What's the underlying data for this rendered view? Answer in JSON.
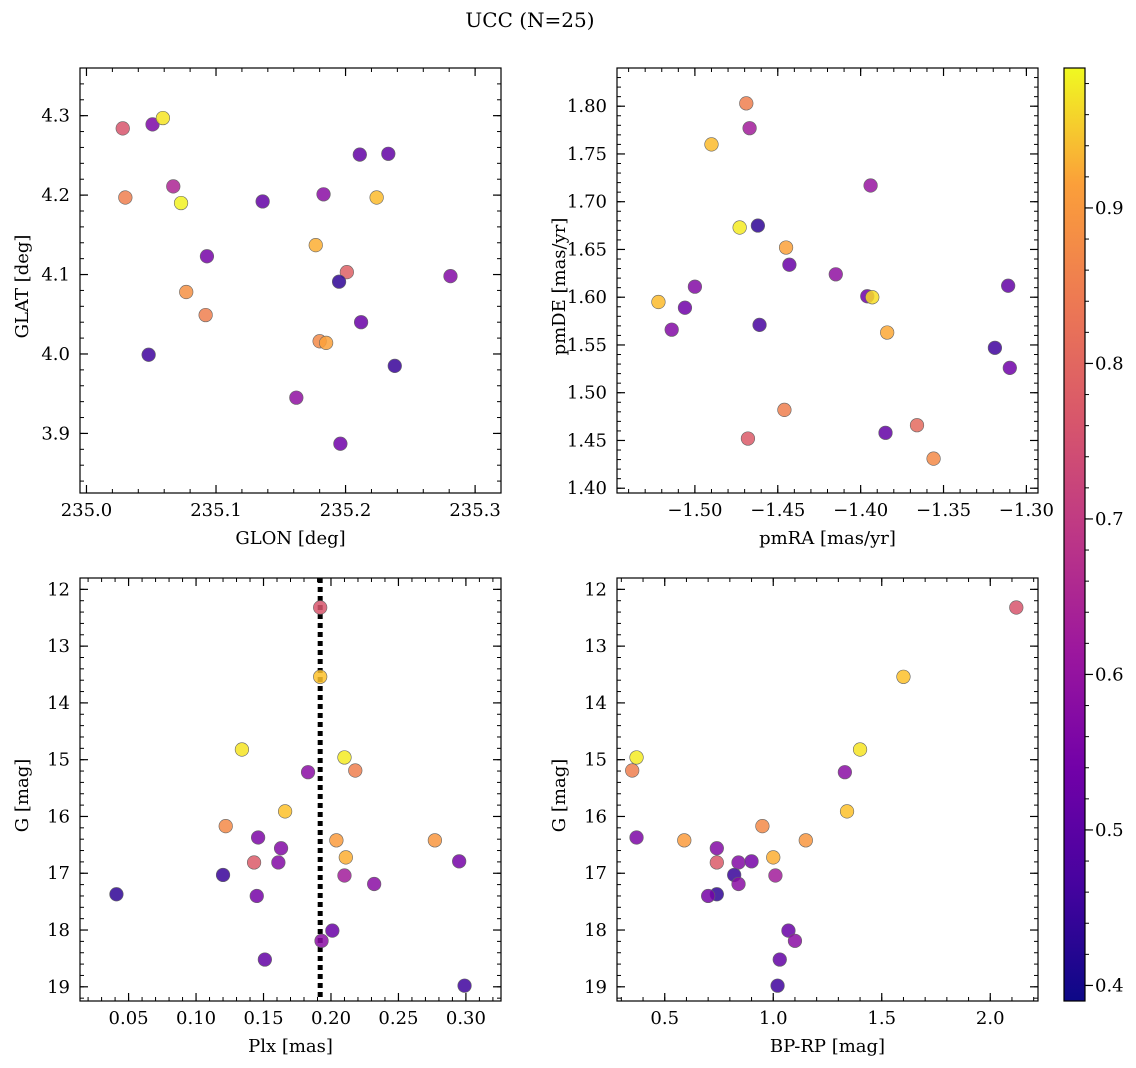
{
  "figure": {
    "title": "UCC (N=25)"
  },
  "colorbar": {
    "colormap": "plasma",
    "vmin": 0.39,
    "vmax": 0.99,
    "ticks": [
      0.4,
      0.5,
      0.6,
      0.7,
      0.8,
      0.9
    ],
    "tick_labels": [
      "0.4",
      "0.5",
      "0.6",
      "0.7",
      "0.8",
      "0.9"
    ]
  },
  "chart_data": [
    {
      "type": "scatter",
      "xlabel": "GLON [deg]",
      "ylabel": "GLAT [deg]",
      "xlim": [
        234.995,
        235.32
      ],
      "ylim": [
        3.825,
        4.36
      ],
      "xticks": [
        235.0,
        235.1,
        235.2,
        235.3
      ],
      "xtick_labels": [
        "235.0",
        "235.1",
        "235.2",
        "235.3"
      ],
      "yticks": [
        3.9,
        4.0,
        4.1,
        4.2,
        4.3
      ],
      "ytick_labels": [
        "3.9",
        "4.0",
        "4.1",
        "4.2",
        "4.3"
      ],
      "inverted_y": false,
      "vline": null,
      "points": [
        {
          "x": 235.028,
          "y": 4.284,
          "c": 0.72
        },
        {
          "x": 235.051,
          "y": 4.289,
          "c": 0.54
        },
        {
          "x": 235.059,
          "y": 4.297,
          "c": 0.96
        },
        {
          "x": 235.03,
          "y": 4.197,
          "c": 0.8
        },
        {
          "x": 235.067,
          "y": 4.211,
          "c": 0.62
        },
        {
          "x": 235.073,
          "y": 4.19,
          "c": 0.98
        },
        {
          "x": 235.136,
          "y": 4.192,
          "c": 0.5
        },
        {
          "x": 235.093,
          "y": 4.123,
          "c": 0.53
        },
        {
          "x": 235.077,
          "y": 4.078,
          "c": 0.83
        },
        {
          "x": 235.092,
          "y": 4.049,
          "c": 0.8
        },
        {
          "x": 235.048,
          "y": 3.999,
          "c": 0.45
        },
        {
          "x": 235.183,
          "y": 4.201,
          "c": 0.56
        },
        {
          "x": 235.211,
          "y": 4.251,
          "c": 0.5
        },
        {
          "x": 235.233,
          "y": 4.252,
          "c": 0.5
        },
        {
          "x": 235.224,
          "y": 4.197,
          "c": 0.9
        },
        {
          "x": 235.177,
          "y": 4.137,
          "c": 0.88
        },
        {
          "x": 235.201,
          "y": 4.103,
          "c": 0.74
        },
        {
          "x": 235.195,
          "y": 4.091,
          "c": 0.43
        },
        {
          "x": 235.281,
          "y": 4.098,
          "c": 0.55
        },
        {
          "x": 235.212,
          "y": 4.04,
          "c": 0.51
        },
        {
          "x": 235.18,
          "y": 4.016,
          "c": 0.82
        },
        {
          "x": 235.185,
          "y": 4.014,
          "c": 0.86
        },
        {
          "x": 235.238,
          "y": 3.985,
          "c": 0.44
        },
        {
          "x": 235.162,
          "y": 3.945,
          "c": 0.57
        },
        {
          "x": 235.196,
          "y": 3.887,
          "c": 0.52
        }
      ]
    },
    {
      "type": "scatter",
      "xlabel": "pmRA [mas/yr]",
      "ylabel": "pmDE [mas/yr]",
      "xlim": [
        -1.547,
        -1.293
      ],
      "ylim": [
        1.395,
        1.84
      ],
      "xticks": [
        -1.5,
        -1.45,
        -1.4,
        -1.35,
        -1.3
      ],
      "xtick_labels": [
        "−1.50",
        "−1.45",
        "−1.40",
        "−1.35",
        "−1.30"
      ],
      "yticks": [
        1.4,
        1.45,
        1.5,
        1.55,
        1.6,
        1.65,
        1.7,
        1.75,
        1.8
      ],
      "ytick_labels": [
        "1.40",
        "1.45",
        "1.50",
        "1.55",
        "1.60",
        "1.65",
        "1.70",
        "1.75",
        "1.80"
      ],
      "inverted_y": false,
      "vline": null,
      "points": [
        {
          "x": -1.469,
          "y": 1.803,
          "c": 0.8
        },
        {
          "x": -1.467,
          "y": 1.777,
          "c": 0.6
        },
        {
          "x": -1.49,
          "y": 1.76,
          "c": 0.9
        },
        {
          "x": -1.394,
          "y": 1.717,
          "c": 0.58
        },
        {
          "x": -1.473,
          "y": 1.673,
          "c": 0.97
        },
        {
          "x": -1.462,
          "y": 1.675,
          "c": 0.43
        },
        {
          "x": -1.445,
          "y": 1.652,
          "c": 0.86
        },
        {
          "x": -1.443,
          "y": 1.634,
          "c": 0.51
        },
        {
          "x": -1.415,
          "y": 1.624,
          "c": 0.57
        },
        {
          "x": -1.5,
          "y": 1.611,
          "c": 0.55
        },
        {
          "x": -1.506,
          "y": 1.589,
          "c": 0.52
        },
        {
          "x": -1.522,
          "y": 1.595,
          "c": 0.9
        },
        {
          "x": -1.514,
          "y": 1.566,
          "c": 0.55
        },
        {
          "x": -1.461,
          "y": 1.571,
          "c": 0.46
        },
        {
          "x": -1.396,
          "y": 1.601,
          "c": 0.52
        },
        {
          "x": -1.393,
          "y": 1.6,
          "c": 0.95
        },
        {
          "x": -1.384,
          "y": 1.563,
          "c": 0.87
        },
        {
          "x": -1.311,
          "y": 1.612,
          "c": 0.5
        },
        {
          "x": -1.319,
          "y": 1.547,
          "c": 0.45
        },
        {
          "x": -1.31,
          "y": 1.526,
          "c": 0.52
        },
        {
          "x": -1.446,
          "y": 1.482,
          "c": 0.8
        },
        {
          "x": -1.468,
          "y": 1.452,
          "c": 0.73
        },
        {
          "x": -1.385,
          "y": 1.458,
          "c": 0.5
        },
        {
          "x": -1.366,
          "y": 1.466,
          "c": 0.76
        },
        {
          "x": -1.356,
          "y": 1.431,
          "c": 0.82
        }
      ]
    },
    {
      "type": "scatter",
      "xlabel": "Plx [mas]",
      "ylabel": "G [mag]",
      "xlim": [
        0.014,
        0.326
      ],
      "ylim": [
        19.25,
        11.8
      ],
      "xticks": [
        0.05,
        0.1,
        0.15,
        0.2,
        0.25,
        0.3
      ],
      "xtick_labels": [
        "0.05",
        "0.10",
        "0.15",
        "0.20",
        "0.25",
        "0.30"
      ],
      "yticks": [
        12,
        13,
        14,
        15,
        16,
        17,
        18,
        19
      ],
      "ytick_labels": [
        "12",
        "13",
        "14",
        "15",
        "16",
        "17",
        "18",
        "19"
      ],
      "inverted_y": true,
      "vline": 0.192,
      "points": [
        {
          "x": 0.192,
          "y": 12.32,
          "c": 0.72
        },
        {
          "x": 0.192,
          "y": 13.54,
          "c": 0.91
        },
        {
          "x": 0.134,
          "y": 14.82,
          "c": 0.96
        },
        {
          "x": 0.21,
          "y": 14.96,
          "c": 0.97
        },
        {
          "x": 0.218,
          "y": 15.19,
          "c": 0.8
        },
        {
          "x": 0.183,
          "y": 15.22,
          "c": 0.56
        },
        {
          "x": 0.166,
          "y": 15.91,
          "c": 0.91
        },
        {
          "x": 0.122,
          "y": 16.17,
          "c": 0.82
        },
        {
          "x": 0.146,
          "y": 16.37,
          "c": 0.54
        },
        {
          "x": 0.204,
          "y": 16.42,
          "c": 0.85
        },
        {
          "x": 0.277,
          "y": 16.42,
          "c": 0.84
        },
        {
          "x": 0.163,
          "y": 16.56,
          "c": 0.55
        },
        {
          "x": 0.211,
          "y": 16.72,
          "c": 0.88
        },
        {
          "x": 0.143,
          "y": 16.81,
          "c": 0.73
        },
        {
          "x": 0.161,
          "y": 16.81,
          "c": 0.55
        },
        {
          "x": 0.295,
          "y": 16.79,
          "c": 0.53
        },
        {
          "x": 0.12,
          "y": 17.03,
          "c": 0.44
        },
        {
          "x": 0.21,
          "y": 17.04,
          "c": 0.6
        },
        {
          "x": 0.232,
          "y": 17.19,
          "c": 0.56
        },
        {
          "x": 0.041,
          "y": 17.37,
          "c": 0.43
        },
        {
          "x": 0.145,
          "y": 17.4,
          "c": 0.53
        },
        {
          "x": 0.201,
          "y": 18.01,
          "c": 0.51
        },
        {
          "x": 0.193,
          "y": 18.19,
          "c": 0.56
        },
        {
          "x": 0.151,
          "y": 18.52,
          "c": 0.5
        },
        {
          "x": 0.299,
          "y": 18.98,
          "c": 0.45
        }
      ]
    },
    {
      "type": "scatter",
      "xlabel": "BP-RP [mag]",
      "ylabel": "G [mag]",
      "xlim": [
        0.28,
        2.22
      ],
      "ylim": [
        19.25,
        11.8
      ],
      "xticks": [
        0.5,
        1.0,
        1.5,
        2.0
      ],
      "xtick_labels": [
        "0.5",
        "1.0",
        "1.5",
        "2.0"
      ],
      "yticks": [
        12,
        13,
        14,
        15,
        16,
        17,
        18,
        19
      ],
      "ytick_labels": [
        "12",
        "13",
        "14",
        "15",
        "16",
        "17",
        "18",
        "19"
      ],
      "inverted_y": true,
      "vline": null,
      "points": [
        {
          "x": 2.12,
          "y": 12.32,
          "c": 0.72
        },
        {
          "x": 1.6,
          "y": 13.54,
          "c": 0.91
        },
        {
          "x": 0.37,
          "y": 14.96,
          "c": 0.97
        },
        {
          "x": 1.4,
          "y": 14.82,
          "c": 0.96
        },
        {
          "x": 0.35,
          "y": 15.19,
          "c": 0.8
        },
        {
          "x": 1.33,
          "y": 15.22,
          "c": 0.56
        },
        {
          "x": 1.34,
          "y": 15.91,
          "c": 0.91
        },
        {
          "x": 0.95,
          "y": 16.17,
          "c": 0.82
        },
        {
          "x": 0.37,
          "y": 16.37,
          "c": 0.54
        },
        {
          "x": 0.59,
          "y": 16.42,
          "c": 0.85
        },
        {
          "x": 1.15,
          "y": 16.42,
          "c": 0.84
        },
        {
          "x": 0.74,
          "y": 16.56,
          "c": 0.55
        },
        {
          "x": 1.0,
          "y": 16.72,
          "c": 0.88
        },
        {
          "x": 0.74,
          "y": 16.81,
          "c": 0.73
        },
        {
          "x": 0.84,
          "y": 16.81,
          "c": 0.55
        },
        {
          "x": 0.9,
          "y": 16.79,
          "c": 0.53
        },
        {
          "x": 0.82,
          "y": 17.03,
          "c": 0.44
        },
        {
          "x": 1.01,
          "y": 17.04,
          "c": 0.6
        },
        {
          "x": 0.84,
          "y": 17.19,
          "c": 0.56
        },
        {
          "x": 0.74,
          "y": 17.37,
          "c": 0.43
        },
        {
          "x": 0.7,
          "y": 17.4,
          "c": 0.53
        },
        {
          "x": 1.07,
          "y": 18.01,
          "c": 0.51
        },
        {
          "x": 1.1,
          "y": 18.19,
          "c": 0.56
        },
        {
          "x": 1.03,
          "y": 18.52,
          "c": 0.5
        },
        {
          "x": 1.02,
          "y": 18.98,
          "c": 0.45
        }
      ]
    }
  ]
}
